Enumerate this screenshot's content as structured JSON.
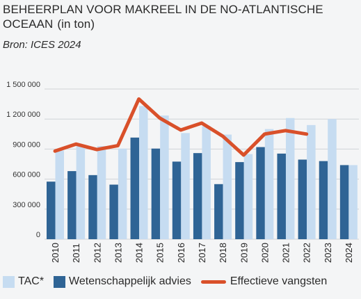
{
  "title": {
    "text": "BEHEERPLAN VOOR MAKREEL IN DE NO-ATLANTISCHE OCEAAN",
    "unit": "(in ton)"
  },
  "source": "Bron: ICES 2024",
  "colors": {
    "tac": "#c6dcf1",
    "advice": "#2f6495",
    "catch": "#d9502a",
    "grid": "#cfd3d7",
    "background": "#f4f5f6"
  },
  "legend": {
    "tac": "TAC*",
    "advice": "Wetenschappelijk advies",
    "catch": "Effectieve vangsten"
  },
  "chart_data": {
    "type": "bar",
    "categories": [
      "2010",
      "2011",
      "2012",
      "2013",
      "2014",
      "2015",
      "2016",
      "2017",
      "2018",
      "2019",
      "2020",
      "2021",
      "2022",
      "2023",
      "2024"
    ],
    "ylim": [
      0,
      1500000
    ],
    "yticks": [
      0,
      300000,
      600000,
      900000,
      1200000,
      1500000
    ],
    "ytick_labels": [
      "0",
      "300 000",
      "600 000",
      "900 000",
      "1 200 000",
      "1 500 000"
    ],
    "grid": true,
    "legend_position": "bottom",
    "series": [
      {
        "name": "TAC*",
        "kind": "bar",
        "values": [
          885000,
          930000,
          930000,
          905000,
          1330000,
          1235000,
          1060000,
          1130000,
          1045000,
          850000,
          1100000,
          1210000,
          1140000,
          1200000,
          740000
        ]
      },
      {
        "name": "Wetenschappelijk advies",
        "kind": "bar",
        "values": [
          575000,
          680000,
          640000,
          545000,
          1015000,
          905000,
          775000,
          860000,
          550000,
          770000,
          920000,
          855000,
          795000,
          780000,
          740000
        ]
      },
      {
        "name": "Effectieve vangsten",
        "kind": "line",
        "values": [
          880000,
          950000,
          895000,
          935000,
          1400000,
          1210000,
          1090000,
          1160000,
          1030000,
          840000,
          1050000,
          1085000,
          1050000,
          null,
          null
        ]
      }
    ]
  }
}
